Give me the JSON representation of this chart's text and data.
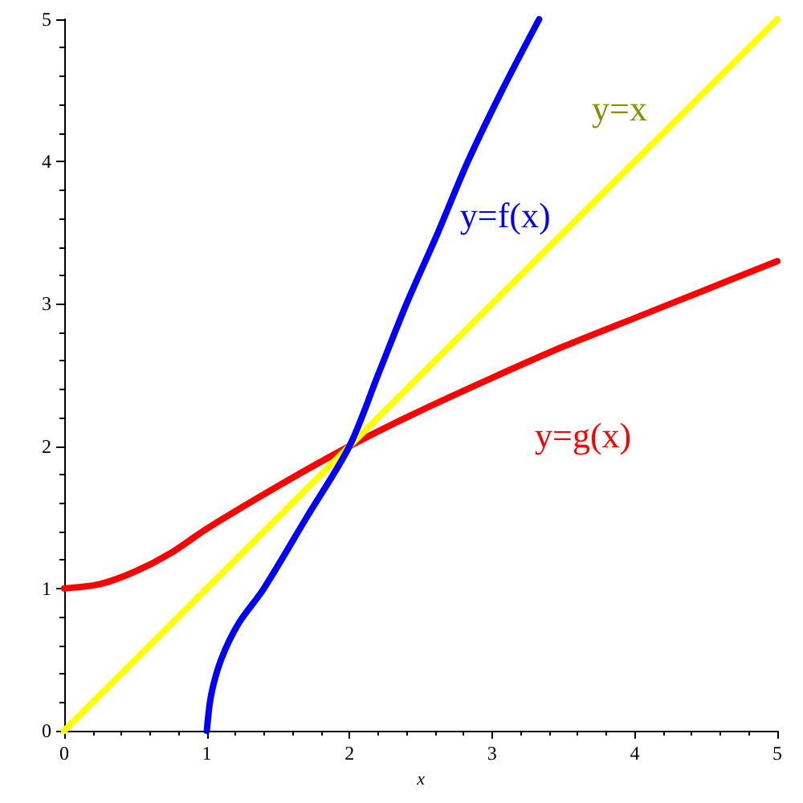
{
  "chart_data": {
    "type": "line",
    "xlabel": "x",
    "xlim": [
      0,
      5
    ],
    "xticks": [
      0,
      1,
      2,
      3,
      4,
      5
    ],
    "ylim": [
      0,
      5
    ],
    "yticks": [
      0,
      1,
      2,
      3,
      4,
      5
    ],
    "grid": false,
    "legend": false,
    "marker": "none",
    "line_style": "solid",
    "series": [
      {
        "name": "y=f(x)",
        "color": "#0000ff",
        "x": [
          1,
          1.03,
          1.1,
          1.22,
          1.4,
          1.7,
          2,
          2.2,
          2.4,
          2.62,
          2.83,
          3.07,
          3.33
        ],
        "values": [
          0,
          0.25,
          0.5,
          0.75,
          1,
          1.5,
          2,
          2.5,
          3,
          3.5,
          4,
          4.5,
          5
        ]
      },
      {
        "name": "y=x",
        "color": "#ffff00",
        "x": [
          0,
          5
        ],
        "values": [
          0,
          5
        ]
      },
      {
        "name": "y=g(x)",
        "color": "#ff0000",
        "x": [
          0,
          0.25,
          0.5,
          0.75,
          1,
          1.5,
          2,
          2.5,
          3,
          3.5,
          4,
          4.5,
          5
        ],
        "values": [
          1,
          1.03,
          1.12,
          1.25,
          1.42,
          1.72,
          2,
          2.25,
          2.48,
          2.7,
          2.9,
          3.1,
          3.3
        ]
      }
    ]
  }
}
